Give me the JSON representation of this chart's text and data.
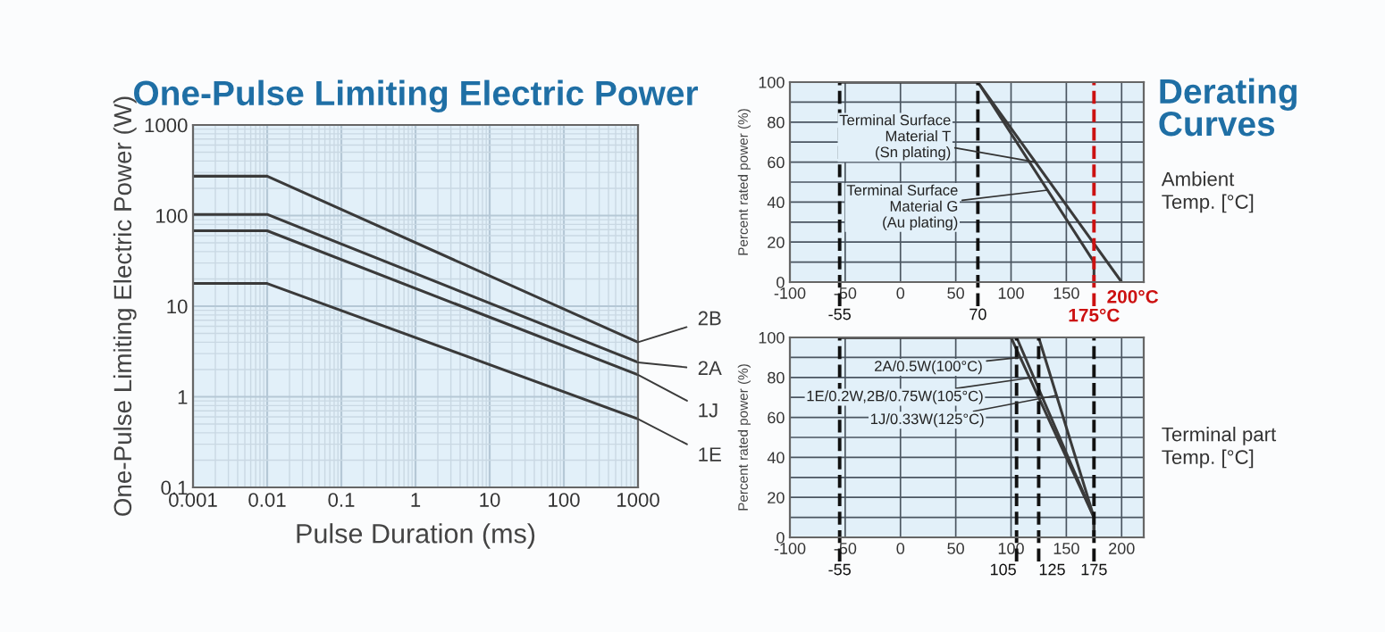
{
  "chart_data": [
    {
      "type": "line",
      "title": "One-Pulse Limiting Electric Power",
      "xlabel": "Pulse Duration (ms)",
      "ylabel": "One-Pulse Limiting Electric Power (W)",
      "log": "xy",
      "xlim": [
        0.001,
        1000
      ],
      "ylim": [
        0.1,
        1000
      ],
      "xticks": [
        0.001,
        0.01,
        0.1,
        1,
        10,
        100,
        1000
      ],
      "yticks": [
        0.1,
        1,
        10,
        100,
        1000
      ],
      "grid": true,
      "series": [
        {
          "name": "2B",
          "color": "#3a3a3a",
          "x": [
            0.001,
            0.01,
            1000
          ],
          "values": [
            272,
            272,
            4.0
          ]
        },
        {
          "name": "2A",
          "color": "#3a3a3a",
          "x": [
            0.001,
            0.01,
            1000
          ],
          "values": [
            103,
            103,
            2.4
          ]
        },
        {
          "name": "1J",
          "color": "#3a3a3a",
          "x": [
            0.001,
            0.01,
            1000
          ],
          "values": [
            68,
            68,
            1.75
          ]
        },
        {
          "name": "1E",
          "color": "#3a3a3a",
          "x": [
            0.001,
            0.01,
            1000
          ],
          "values": [
            17.8,
            17.8,
            0.57
          ]
        }
      ]
    },
    {
      "type": "line",
      "title": "Derating\nCurves",
      "xlabel": "Ambient\nTemp. [°C]",
      "ylabel": "Percent rated power (%)",
      "xlim": [
        -100,
        220
      ],
      "ylim": [
        0,
        100
      ],
      "xticks": [
        -100,
        -50,
        0,
        50,
        100,
        150,
        {
          "value": 200,
          "label": null
        }
      ],
      "yticks": [
        0,
        {
          "value": 10,
          "label": null
        },
        20,
        {
          "value": 30,
          "label": null
        },
        40,
        {
          "value": 50,
          "label": null
        },
        60,
        {
          "value": 70,
          "label": null
        },
        80,
        {
          "value": 90,
          "label": null
        },
        100
      ],
      "grid": true,
      "series": [
        {
          "color": "#3a3a3a",
          "x": [
            -55,
            70,
            200
          ],
          "values": [
            100,
            100,
            0
          ]
        },
        {
          "color": "#3a3a3a",
          "x": [
            -55,
            70,
            175,
            175
          ],
          "values": [
            100,
            100,
            10,
            0
          ]
        }
      ],
      "ref_lines": [
        {
          "axis": "x",
          "value": -55,
          "label": "-55",
          "line_style": "dashed",
          "color": "#111111"
        },
        {
          "axis": "x",
          "value": 70,
          "label": "70",
          "line_style": "dashed",
          "color": "#111111"
        },
        {
          "axis": "x",
          "value": 175,
          "label": "175°C",
          "line_style": "dashed",
          "color": "#cc1111"
        }
      ],
      "annotations": [
        {
          "text": "Terminal Surface\nMaterial T\n(Sn plating)",
          "x": 122,
          "y": 60
        },
        {
          "text": "Terminal Surface\nMaterial G\n(Au plating)",
          "x": 133,
          "y": 46
        },
        {
          "text": "200°C",
          "x": 200,
          "y": 0
        }
      ]
    },
    {
      "type": "line",
      "xlabel": "Terminal part\nTemp. [°C]",
      "ylabel": "Percent rated power (%)",
      "xlim": [
        -100,
        220
      ],
      "ylim": [
        0,
        100
      ],
      "xticks": [
        -100,
        -50,
        0,
        50,
        100,
        150,
        200
      ],
      "yticks": [
        0,
        {
          "value": 10,
          "label": null
        },
        20,
        {
          "value": 30,
          "label": null
        },
        40,
        {
          "value": 50,
          "label": null
        },
        60,
        {
          "value": 70,
          "label": null
        },
        80,
        {
          "value": 90,
          "label": null
        },
        100
      ],
      "grid": true,
      "series": [
        {
          "color": "#3a3a3a",
          "x": [
            -55,
            100,
            175,
            175
          ],
          "values": [
            100,
            100,
            10,
            0
          ]
        },
        {
          "color": "#3a3a3a",
          "x": [
            -55,
            105,
            175,
            175
          ],
          "values": [
            100,
            100,
            10,
            0
          ]
        },
        {
          "color": "#3a3a3a",
          "x": [
            -55,
            125,
            175,
            175
          ],
          "values": [
            100,
            100,
            10,
            0
          ]
        }
      ],
      "ref_lines": [
        {
          "axis": "x",
          "value": -55,
          "label": "-55",
          "line_style": "dashed",
          "color": "#111111"
        },
        {
          "axis": "x",
          "value": 105,
          "label": "105",
          "line_style": "dashed",
          "color": "#111111"
        },
        {
          "axis": "x",
          "value": 125,
          "label": "125",
          "line_style": "dashed",
          "color": "#111111"
        },
        {
          "axis": "x",
          "value": 175,
          "label": "175",
          "line_style": "dashed",
          "color": "#111111"
        }
      ],
      "annotations": [
        {
          "text": "2A/0.5W(100°C)",
          "x": 108,
          "y": 90
        },
        {
          "text": "1E/0.2W,2B/0.75W(105°C)",
          "x": 120,
          "y": 80
        },
        {
          "text": "1J/0.33W(125°C)",
          "x": 141,
          "y": 71
        }
      ]
    }
  ]
}
